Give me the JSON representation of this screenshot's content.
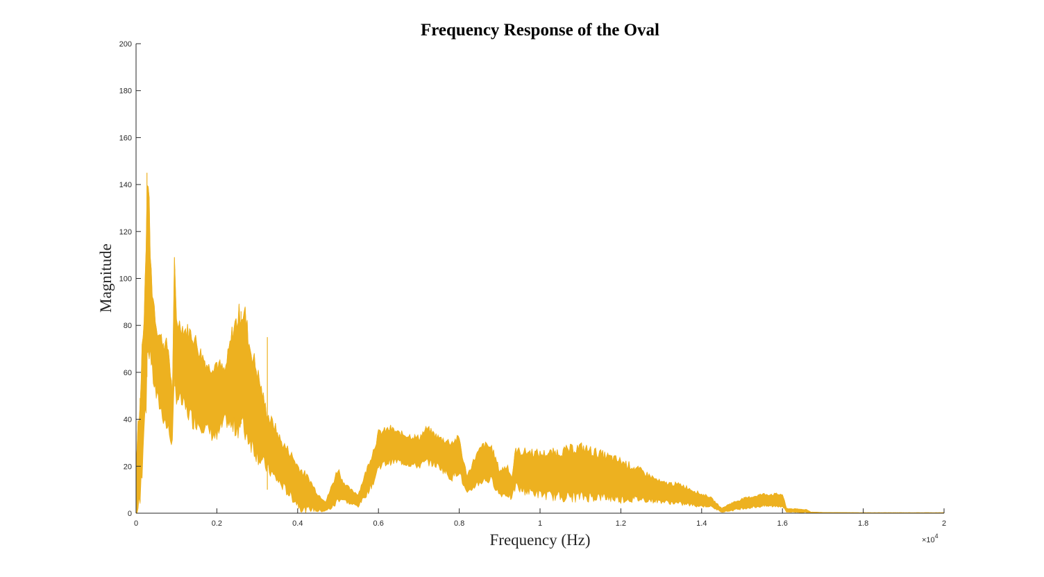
{
  "chart_data": {
    "type": "area",
    "title": "Frequency Response of the Oval",
    "xlabel": "Frequency (Hz)",
    "ylabel": "Magnitude",
    "xlim": [
      0,
      20000
    ],
    "ylim": [
      0,
      200
    ],
    "x_exponent_label": "×10",
    "x_exponent_power": "4",
    "x_ticks": [
      {
        "value": 0,
        "label": "0"
      },
      {
        "value": 2000,
        "label": "0.2"
      },
      {
        "value": 4000,
        "label": "0.4"
      },
      {
        "value": 6000,
        "label": "0.6"
      },
      {
        "value": 8000,
        "label": "0.8"
      },
      {
        "value": 10000,
        "label": "1"
      },
      {
        "value": 12000,
        "label": "1.2"
      },
      {
        "value": 14000,
        "label": "1.4"
      },
      {
        "value": 16000,
        "label": "1.6"
      },
      {
        "value": 18000,
        "label": "1.8"
      },
      {
        "value": 20000,
        "label": "2"
      }
    ],
    "y_ticks": [
      {
        "value": 0,
        "label": "0"
      },
      {
        "value": 20,
        "label": "20"
      },
      {
        "value": 40,
        "label": "40"
      },
      {
        "value": 60,
        "label": "60"
      },
      {
        "value": 80,
        "label": "80"
      },
      {
        "value": 100,
        "label": "100"
      },
      {
        "value": 120,
        "label": "120"
      },
      {
        "value": 140,
        "label": "140"
      },
      {
        "value": 160,
        "label": "160"
      },
      {
        "value": 180,
        "label": "180"
      },
      {
        "value": 200,
        "label": "200"
      }
    ],
    "grid": false,
    "series": [
      {
        "color": "#EDB120",
        "x": [
          0,
          50,
          100,
          150,
          200,
          250,
          300,
          350,
          400,
          450,
          500,
          600,
          700,
          800,
          900,
          950,
          1000,
          1100,
          1200,
          1400,
          1600,
          1800,
          2000,
          2200,
          2400,
          2600,
          2700,
          2800,
          3000,
          3200,
          3300,
          3400,
          3600,
          3800,
          4000,
          4100,
          4200,
          4300,
          4500,
          4700,
          4900,
          5000,
          5100,
          5300,
          5500,
          5700,
          5900,
          6000,
          6300,
          6500,
          7000,
          7200,
          7500,
          7800,
          8000,
          8100,
          8200,
          8400,
          8600,
          8800,
          9000,
          9200,
          9300,
          9400,
          9500,
          9800,
          10000,
          10500,
          11000,
          11500,
          12000,
          12500,
          13000,
          13500,
          14000,
          14200,
          14500,
          14700,
          15000,
          15500,
          16000,
          16100,
          16600,
          16700,
          17000,
          18000,
          19000,
          20000
        ],
        "upper": [
          20,
          40,
          45,
          70,
          80,
          118,
          146,
          110,
          95,
          88,
          80,
          75,
          72,
          70,
          50,
          104,
          82,
          80,
          78,
          76,
          68,
          62,
          64,
          60,
          78,
          86,
          84,
          72,
          60,
          45,
          40,
          38,
          30,
          26,
          20,
          18,
          16,
          14,
          8,
          5,
          14,
          19,
          14,
          10,
          8,
          18,
          28,
          34,
          36,
          34,
          32,
          36,
          32,
          30,
          32,
          22,
          16,
          24,
          29,
          28,
          18,
          20,
          15,
          27,
          26,
          26,
          25,
          26,
          28,
          25,
          22,
          18,
          13,
          12,
          8,
          7,
          2,
          4,
          6,
          8,
          8,
          2,
          1.5,
          0.5,
          0.3,
          0.2,
          0.2,
          0.2
        ],
        "lower": [
          0,
          2,
          5,
          20,
          40,
          50,
          70,
          70,
          60,
          55,
          50,
          45,
          40,
          35,
          30,
          55,
          50,
          48,
          45,
          40,
          38,
          35,
          32,
          40,
          36,
          38,
          35,
          32,
          25,
          20,
          18,
          16,
          12,
          8,
          4,
          2,
          1,
          2,
          1,
          1,
          3,
          6,
          6,
          4,
          3,
          8,
          14,
          20,
          22,
          22,
          20,
          22,
          20,
          15,
          18,
          12,
          8,
          12,
          14,
          14,
          8,
          8,
          6,
          12,
          10,
          9,
          8,
          7,
          7,
          7,
          6,
          6,
          5,
          4,
          3,
          3,
          0.5,
          1,
          2,
          3,
          3,
          0.5,
          0.3,
          0.1,
          0.1,
          0.1,
          0.1,
          0.1
        ],
        "spikes": [
          {
            "x": 100,
            "y": 49
          },
          {
            "x": 270,
            "y": 145
          },
          {
            "x": 960,
            "y": 104
          },
          {
            "x": 2600,
            "y": 86
          },
          {
            "x": 3250,
            "y": 75
          },
          {
            "x": 3250,
            "y": 10
          }
        ]
      }
    ]
  }
}
